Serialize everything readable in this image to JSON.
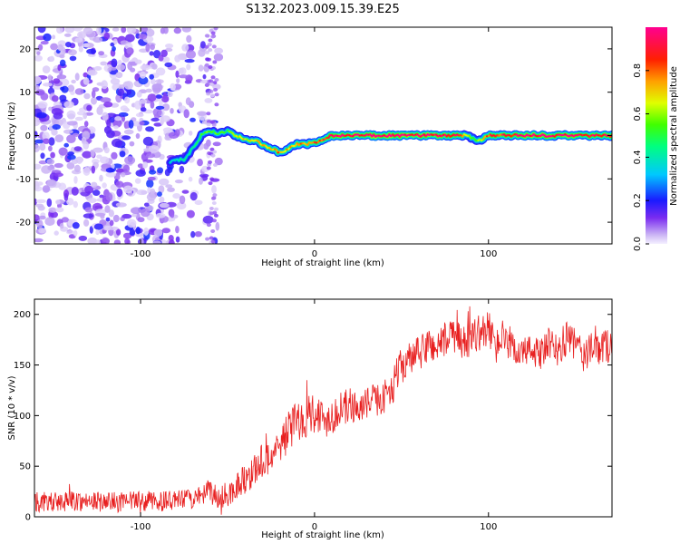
{
  "title": "S132.2023.009.15.39.E25",
  "colors": {
    "snr_line": "#e82020",
    "frame": "#000000"
  },
  "chart_data": [
    {
      "type": "heatmap",
      "name": "spectrogram",
      "title": "S132.2023.009.15.39.E25",
      "xlabel": "Height of straight line (km)",
      "ylabel": "Frequency (Hz)",
      "xlim": [
        -161,
        171
      ],
      "ylim": [
        -25,
        25
      ],
      "xticks": [
        -100,
        0,
        100
      ],
      "yticks": [
        -20,
        -10,
        0,
        10,
        20
      ],
      "grid": false,
      "colormap": "rainbow (violet-blue-cyan-green-yellow-red-magenta)",
      "colorbar": {
        "label": "Normalized spectral amplitude",
        "range": [
          0.0,
          1.0
        ],
        "ticks": [
          0.0,
          0.2,
          0.4,
          0.6,
          0.8
        ]
      },
      "ridge": {
        "x": [
          -83,
          -75,
          -70,
          -65,
          -60,
          -55,
          -50,
          -45,
          -40,
          -35,
          -30,
          -25,
          -20,
          -15,
          -10,
          -5,
          0,
          5,
          10,
          20,
          40,
          60,
          80,
          88,
          92,
          96,
          100,
          120,
          140,
          171
        ],
        "freq": [
          -6,
          -5.5,
          -3,
          0,
          1,
          0.5,
          1,
          0,
          -1,
          -1,
          -2,
          -3,
          -4,
          -3,
          -2,
          -2,
          -1.5,
          -1,
          0,
          0,
          0,
          0,
          0,
          0,
          -1,
          -1,
          0,
          0,
          0,
          0
        ],
        "amplitude": [
          0.25,
          0.3,
          0.3,
          0.35,
          0.45,
          0.4,
          0.4,
          0.5,
          0.55,
          0.55,
          0.6,
          0.6,
          0.65,
          0.6,
          0.6,
          0.65,
          0.7,
          0.75,
          0.8,
          0.85,
          0.9,
          0.85,
          0.85,
          0.5,
          0.45,
          0.5,
          0.7,
          0.85,
          0.85,
          0.8
        ]
      },
      "noise_region_x": [
        -161,
        -55
      ]
    },
    {
      "type": "line",
      "name": "snr",
      "xlabel": "Height of straight line (km)",
      "ylabel": "SNR (10 * v/v)",
      "xlim": [
        -161,
        171
      ],
      "ylim": [
        0,
        215
      ],
      "xticks": [
        -100,
        0,
        100
      ],
      "yticks": [
        0,
        50,
        100,
        150,
        200
      ],
      "grid": false,
      "series": [
        {
          "x": [
            -160,
            -150,
            -140,
            -130,
            -120,
            -110,
            -100,
            -90,
            -80,
            -70,
            -65,
            -60,
            -55,
            -50,
            -45,
            -40,
            -35,
            -30,
            -25,
            -20,
            -15,
            -10,
            -5,
            0,
            5,
            10,
            15,
            20,
            25,
            30,
            35,
            40,
            45,
            50,
            55,
            60,
            65,
            70,
            75,
            80,
            85,
            90,
            95,
            100,
            105,
            110,
            115,
            120,
            125,
            130,
            135,
            140,
            145,
            150,
            155,
            160,
            165,
            171
          ],
          "y": [
            15,
            14,
            16,
            15,
            15,
            14,
            16,
            15,
            16,
            18,
            20,
            25,
            18,
            22,
            30,
            38,
            45,
            55,
            60,
            70,
            85,
            95,
            100,
            105,
            95,
            100,
            105,
            110,
            108,
            112,
            115,
            118,
            130,
            150,
            155,
            160,
            170,
            168,
            175,
            180,
            170,
            178,
            182,
            185,
            175,
            170,
            165,
            162,
            165,
            160,
            170,
            165,
            175,
            170,
            160,
            165,
            168,
            170
          ],
          "noise_amplitude": [
            10,
            10,
            10,
            10,
            10,
            10,
            10,
            10,
            10,
            10,
            10,
            12,
            12,
            14,
            14,
            16,
            16,
            18,
            18,
            20,
            20,
            22,
            22,
            22,
            20,
            18,
            18,
            18,
            16,
            16,
            16,
            16,
            18,
            18,
            18,
            18,
            18,
            18,
            18,
            18,
            18,
            18,
            18,
            18,
            16,
            16,
            16,
            16,
            16,
            16,
            18,
            18,
            18,
            18,
            18,
            18,
            18,
            18
          ]
        }
      ]
    }
  ]
}
